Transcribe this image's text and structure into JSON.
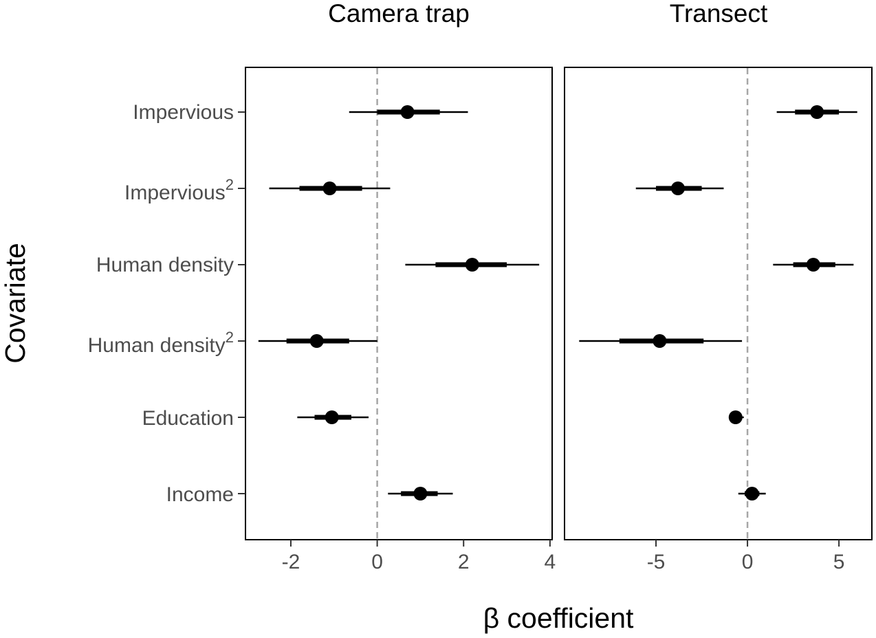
{
  "chart_data": {
    "type": "forest",
    "title": "",
    "xlabel": "β coefficient",
    "ylabel": "Covariate",
    "grid": false,
    "legend": "none",
    "covariates": [
      {
        "label": "Impervious",
        "superscript": ""
      },
      {
        "label": "Impervious",
        "superscript": "2"
      },
      {
        "label": "Human density",
        "superscript": ""
      },
      {
        "label": "Human density",
        "superscript": "2"
      },
      {
        "label": "Education",
        "superscript": ""
      },
      {
        "label": "Income",
        "superscript": ""
      }
    ],
    "reference_line": 0,
    "panels": [
      {
        "name": "Camera trap",
        "xlim": [
          -3.05,
          4.05
        ],
        "xticks": [
          -2,
          0,
          2,
          4
        ],
        "estimates": [
          {
            "covariate": "Impervious",
            "mean": 0.7,
            "inner": [
              0.0,
              1.45
            ],
            "outer": [
              -0.65,
              2.1
            ]
          },
          {
            "covariate": "Impervious^2",
            "mean": -1.1,
            "inner": [
              -1.8,
              -0.35
            ],
            "outer": [
              -2.5,
              0.3
            ]
          },
          {
            "covariate": "Human density",
            "mean": 2.2,
            "inner": [
              1.35,
              3.0
            ],
            "outer": [
              0.65,
              3.75
            ]
          },
          {
            "covariate": "Human density^2",
            "mean": -1.4,
            "inner": [
              -2.1,
              -0.65
            ],
            "outer": [
              -2.75,
              0.0
            ]
          },
          {
            "covariate": "Education",
            "mean": -1.05,
            "inner": [
              -1.45,
              -0.6
            ],
            "outer": [
              -1.85,
              -0.2
            ]
          },
          {
            "covariate": "Income",
            "mean": 1.0,
            "inner": [
              0.55,
              1.4
            ],
            "outer": [
              0.25,
              1.75
            ]
          }
        ]
      },
      {
        "name": "Transect",
        "xlim": [
          -10.0,
          6.8
        ],
        "xticks": [
          -5,
          0,
          5
        ],
        "estimates": [
          {
            "covariate": "Impervious",
            "mean": 3.8,
            "inner": [
              2.6,
              5.0
            ],
            "outer": [
              1.6,
              6.0
            ]
          },
          {
            "covariate": "Impervious^2",
            "mean": -3.8,
            "inner": [
              -5.0,
              -2.5
            ],
            "outer": [
              -6.1,
              -1.3
            ]
          },
          {
            "covariate": "Human density",
            "mean": 3.6,
            "inner": [
              2.5,
              4.8
            ],
            "outer": [
              1.4,
              5.8
            ]
          },
          {
            "covariate": "Human density^2",
            "mean": -4.8,
            "inner": [
              -7.0,
              -2.4
            ],
            "outer": [
              -9.2,
              -0.3
            ]
          },
          {
            "covariate": "Education",
            "mean": -0.65,
            "inner": [
              -0.95,
              -0.3
            ],
            "outer": [
              -1.0,
              -0.2
            ]
          },
          {
            "covariate": "Income",
            "mean": 0.25,
            "inner": [
              -0.15,
              0.65
            ],
            "outer": [
              -0.5,
              1.0
            ]
          }
        ]
      }
    ]
  }
}
